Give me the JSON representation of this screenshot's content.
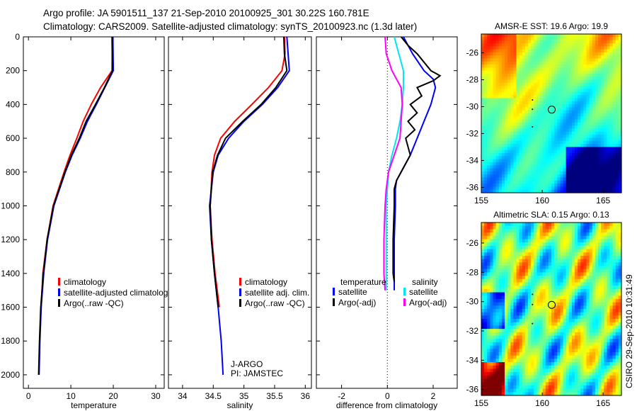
{
  "title_lines": [
    "Argo profile: JA 5901511_137 21-Sep-2010 20100925_301 30.22S 160.781E",
    "Climatology: CARS2009. Satellite-adjusted climatology: synTS_20100923.nc (1.3d later)"
  ],
  "side_label": "CSIRO 29-Sep-2010 10:31:49",
  "colors": {
    "climatology": "#ff0000",
    "satellite": "#0000ff",
    "argo": "#000000",
    "sal_sat": "#00e5ee",
    "sal_argo": "#ff00ff"
  },
  "chart_data": [
    {
      "type": "line",
      "xlabel": "temperature",
      "xlim": [
        -1.2,
        32
      ],
      "ylim": [
        0,
        2080
      ],
      "xticks": [
        0,
        10,
        20,
        30
      ],
      "yticks": [
        0,
        200,
        400,
        600,
        800,
        1000,
        1200,
        1400,
        1600,
        1800,
        2000
      ],
      "legend": [
        "climatology",
        "satellite-adjusted climatology",
        "Argo(..raw -QC)"
      ],
      "series": [
        {
          "name": "climatology",
          "color": "#ff0000",
          "depth": [
            0,
            200,
            300,
            400,
            500,
            600,
            700,
            800,
            1000,
            1200,
            1400,
            1600
          ],
          "values": [
            19.8,
            19.7,
            17.0,
            14.8,
            12.9,
            11.4,
            9.8,
            8.4,
            5.8,
            4.4,
            3.4,
            3.0
          ]
        },
        {
          "name": "satellite-adjusted climatology",
          "color": "#0000ff",
          "depth": [
            0,
            200,
            300,
            400,
            500,
            600,
            700,
            800,
            1000,
            1200,
            1400,
            1600,
            1800,
            2000
          ],
          "values": [
            19.9,
            20.0,
            18.0,
            16.0,
            13.9,
            12.2,
            10.3,
            8.7,
            6.0,
            4.5,
            3.6,
            3.0,
            2.7,
            2.5
          ]
        },
        {
          "name": "Argo(..raw -QC)",
          "color": "#000000",
          "depth": [
            0,
            200,
            300,
            400,
            500,
            600,
            700,
            800,
            1000,
            1200,
            1400,
            1600,
            1800,
            2000
          ],
          "values": [
            19.7,
            19.8,
            17.9,
            15.8,
            13.6,
            12.0,
            10.1,
            8.6,
            5.9,
            4.4,
            3.5,
            2.9,
            2.6,
            2.4
          ]
        }
      ]
    },
    {
      "type": "line",
      "xlabel": "salinity",
      "xlim": [
        33.77,
        36.1
      ],
      "ylim": [
        0,
        2080
      ],
      "xticks": [
        34,
        34.5,
        35,
        35.5,
        36
      ],
      "legend": [
        "climatology",
        "satellite adj. clim.",
        "Argo(..raw -QC)"
      ],
      "annotation": [
        "J-ARGO",
        "PI: JAMSTEC"
      ],
      "series": [
        {
          "name": "climatology",
          "color": "#ff0000",
          "depth": [
            0,
            100,
            200,
            300,
            400,
            500,
            600,
            700,
            800,
            1000,
            1200,
            1400,
            1600
          ],
          "values": [
            35.66,
            35.67,
            35.62,
            35.4,
            35.13,
            34.85,
            34.62,
            34.52,
            34.48,
            34.45,
            34.48,
            34.53,
            34.6
          ]
        },
        {
          "name": "satellite adj. clim.",
          "color": "#0000ff",
          "depth": [
            0,
            100,
            200,
            300,
            400,
            500,
            600,
            700,
            800,
            1000,
            1200,
            1400,
            1600,
            1800,
            2000
          ],
          "values": [
            35.7,
            35.72,
            35.74,
            35.55,
            35.3,
            35.0,
            34.75,
            34.58,
            34.5,
            34.44,
            34.47,
            34.52,
            34.58,
            34.63,
            34.66
          ]
        },
        {
          "name": "Argo(..raw -QC)",
          "color": "#000000",
          "depth": [
            0,
            100,
            200,
            300,
            400,
            500,
            600,
            700,
            800,
            1000,
            1200,
            1400,
            1600
          ],
          "values": [
            35.65,
            35.66,
            35.7,
            35.52,
            35.28,
            34.98,
            34.7,
            34.57,
            34.49,
            34.45,
            34.47,
            34.52,
            34.58
          ]
        }
      ]
    },
    {
      "type": "line",
      "xlabel": "difference from climatology",
      "xlim": [
        -3.1,
        3.05
      ],
      "ylim": [
        0,
        2080
      ],
      "xticks": [
        -2,
        0,
        2
      ],
      "legend_titles": [
        "temperature",
        "salinity"
      ],
      "legend": [
        "satellite",
        "Argo(-adj)",
        "satellite",
        "Argo(-adj)"
      ],
      "series": [
        {
          "name": "temperature satellite",
          "color": "#0000ff",
          "depth": [
            0,
            50,
            100,
            200,
            250,
            300,
            400,
            500,
            600,
            700,
            800,
            850,
            900,
            1000,
            1200,
            1400,
            1500
          ],
          "values": [
            0.7,
            0.9,
            1.1,
            1.6,
            2.0,
            2.1,
            1.9,
            1.6,
            1.3,
            1.0,
            0.6,
            0.4,
            0.35,
            0.35,
            0.3,
            0.3,
            0.3
          ]
        },
        {
          "name": "temperature Argo(-adj)",
          "color": "#000000",
          "depth": [
            0,
            50,
            100,
            200,
            230,
            260,
            300,
            350,
            400,
            450,
            500,
            550,
            600,
            700,
            800,
            850,
            900,
            1000,
            1200,
            1400,
            1450
          ],
          "values": [
            0.6,
            0.9,
            1.3,
            1.9,
            2.3,
            2.0,
            1.3,
            1.5,
            1.0,
            1.3,
            0.9,
            1.2,
            0.8,
            1.0,
            0.6,
            0.4,
            0.3,
            0.3,
            0.25,
            0.25,
            0.3
          ]
        },
        {
          "name": "salinity satellite",
          "color": "#00e5ee",
          "depth": [
            0,
            100,
            200,
            300,
            400,
            500,
            600,
            700,
            800,
            900,
            1000,
            1200,
            1400,
            1500
          ],
          "values": [
            0.3,
            0.5,
            0.7,
            0.7,
            0.65,
            0.55,
            0.4,
            0.2,
            0.05,
            0.0,
            -0.05,
            -0.05,
            -0.05,
            -0.05
          ]
        },
        {
          "name": "salinity Argo(-adj)",
          "color": "#ff00ff",
          "depth": [
            0,
            100,
            200,
            300,
            400,
            500,
            600,
            700,
            800,
            900,
            1000,
            1200,
            1400,
            1500
          ],
          "values": [
            -0.1,
            -0.05,
            0.2,
            0.6,
            0.65,
            0.6,
            0.55,
            0.3,
            0.05,
            -0.05,
            -0.1,
            -0.15,
            -0.15,
            -0.1
          ]
        }
      ]
    },
    {
      "type": "heatmap",
      "title": "AMSR-E SST: 19.6 Argo: 19.9",
      "xlim": [
        155,
        166.5
      ],
      "ylim": [
        -36.4,
        -24.6
      ],
      "xticks": [
        155,
        160,
        165
      ],
      "yticks": [
        -26,
        -28,
        -30,
        -32,
        -34,
        -36
      ],
      "marker": {
        "lon": 160.78,
        "lat": -30.22
      }
    },
    {
      "type": "heatmap",
      "title": "Altimetric SLA: 0.15 Argo: 0.13",
      "xlim": [
        155,
        166.5
      ],
      "ylim": [
        -36.4,
        -24.6
      ],
      "xticks": [
        155,
        160,
        165
      ],
      "yticks": [
        -26,
        -28,
        -30,
        -32,
        -34,
        -36
      ],
      "marker": {
        "lon": 160.78,
        "lat": -30.22
      }
    }
  ]
}
